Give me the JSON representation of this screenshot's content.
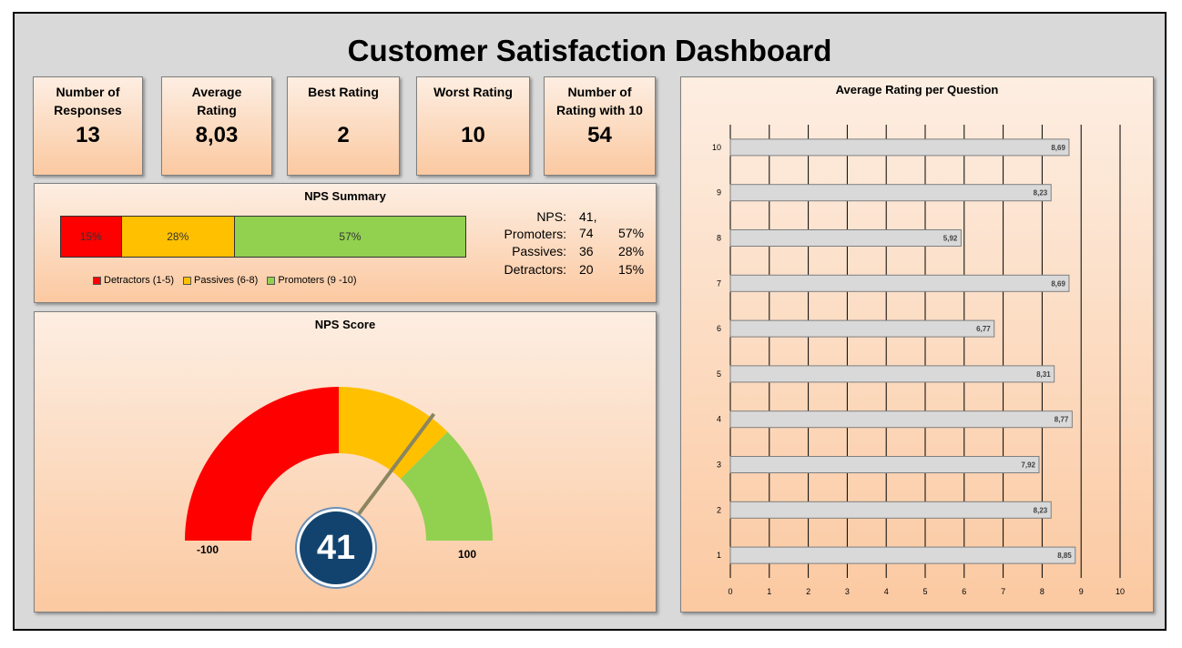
{
  "dashboard": {
    "title": "Customer Satisfaction Dashboard"
  },
  "kpis": [
    {
      "label": "Number of\nResponses",
      "value": "13"
    },
    {
      "label": "Average\nRating",
      "value": "8,03"
    },
    {
      "label": "Best Rating",
      "value": "2"
    },
    {
      "label": "Worst Rating",
      "value": "10"
    },
    {
      "label": "Number of\nRating with 10",
      "value": "54"
    }
  ],
  "nps_summary": {
    "title": "NPS Summary",
    "segments": [
      {
        "label": "15%",
        "share": 0.15,
        "color": "#ff0000"
      },
      {
        "label": "28%",
        "share": 0.28,
        "color": "#ffc000"
      },
      {
        "label": "57%",
        "share": 0.57,
        "color": "#92d050"
      }
    ],
    "legend": [
      {
        "label": "Detractors (1-5)",
        "color": "#ff0000"
      },
      {
        "label": "Passives (6-8)",
        "color": "#ffc000"
      },
      {
        "label": "Promoters (9 -10)",
        "color": "#92d050"
      }
    ],
    "stats": {
      "nps_label": "NPS:",
      "nps_value": "41,",
      "promoters_label": "Promoters:",
      "promoters_value": "74",
      "promoters_pct": "57%",
      "passives_label": "Passives:",
      "passives_value": "36",
      "passives_pct": "28%",
      "detractors_label": "Detractors:",
      "detractors_value": "20",
      "detractors_pct": "15%"
    }
  },
  "nps_score": {
    "title": "NPS Score",
    "value": "41",
    "score": 41,
    "min_label": "-100",
    "max_label": "100",
    "zones": [
      {
        "from": -100,
        "to": 0,
        "color": "#ff0000"
      },
      {
        "from": 0,
        "to": 50,
        "color": "#ffc000"
      },
      {
        "from": 50,
        "to": 100,
        "color": "#92d050"
      }
    ],
    "needle_color": "#8b8560"
  },
  "chart_data": {
    "type": "bar",
    "orientation": "horizontal",
    "title": "Average Rating per Question",
    "categories": [
      "1",
      "2",
      "3",
      "4",
      "5",
      "6",
      "7",
      "8",
      "9",
      "10"
    ],
    "values": [
      8.85,
      8.23,
      7.92,
      8.77,
      8.31,
      6.77,
      8.69,
      5.92,
      8.23,
      8.69
    ],
    "value_labels": [
      "8,85",
      "8,23",
      "7,92",
      "8,77",
      "8,31",
      "6,77",
      "8,69",
      "5,92",
      "8,23",
      "8,69"
    ],
    "x_ticks": [
      "0",
      "1",
      "2",
      "3",
      "4",
      "5",
      "6",
      "7",
      "8",
      "9",
      "10"
    ],
    "xlim": [
      0,
      10
    ],
    "grid": true,
    "bar_color": "#d9d9d9"
  }
}
